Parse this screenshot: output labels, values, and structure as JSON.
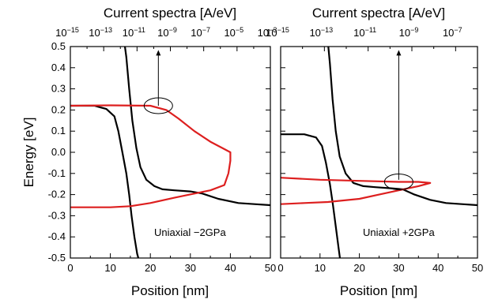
{
  "chart_data": [
    {
      "type": "line",
      "top_axis_title": "Current spectra [A/eV]",
      "top_ticks": [
        {
          "label": "10",
          "exp": "−15"
        },
        {
          "label": "10",
          "exp": "−13"
        },
        {
          "label": "10",
          "exp": "−11"
        },
        {
          "label": "10",
          "exp": "−9"
        },
        {
          "label": "10",
          "exp": "−7"
        },
        {
          "label": "10",
          "exp": "−5"
        },
        {
          "label": "10",
          "exp": "−3"
        }
      ],
      "top_xlim": [
        -15,
        -3
      ],
      "xlabel": "Position [nm]",
      "ylabel": "Energy [eV]",
      "xlim": [
        0,
        50
      ],
      "ylim": [
        -0.5,
        0.5
      ],
      "xticks": [
        "0",
        "10",
        "20",
        "30",
        "40",
        "50"
      ],
      "yticks": [
        "0.5",
        "0.4",
        "0.3",
        "0.2",
        "0.1",
        "0.0",
        "-0.1",
        "-0.2",
        "-0.3",
        "-0.4",
        "-0.5"
      ],
      "annotation": "Uniaxial −2GPa",
      "arrow": {
        "x": 22,
        "y_from": 0.22,
        "y_to": 0.48
      },
      "marker_ellipse": {
        "x": 22,
        "y": 0.22
      },
      "series": [
        {
          "color": "#000000",
          "points": [
            [
              13.5,
              0.52
            ],
            [
              14,
              0.45
            ],
            [
              14.7,
              0.3
            ],
            [
              15.5,
              0.15
            ],
            [
              16.5,
              0.02
            ],
            [
              17.5,
              -0.07
            ],
            [
              19,
              -0.13
            ],
            [
              21,
              -0.16
            ],
            [
              23,
              -0.175
            ],
            [
              26,
              -0.18
            ],
            [
              30,
              -0.185
            ],
            [
              33,
              -0.195
            ],
            [
              37,
              -0.22
            ],
            [
              42,
              -0.24
            ],
            [
              46,
              -0.245
            ],
            [
              50,
              -0.25
            ]
          ]
        },
        {
          "color": "#000000",
          "points": [
            [
              0,
              0.22
            ],
            [
              6,
              0.22
            ],
            [
              9,
              0.205
            ],
            [
              11,
              0.17
            ],
            [
              12,
              0.1
            ],
            [
              13,
              0.0
            ],
            [
              14,
              -0.1
            ],
            [
              14.7,
              -0.2
            ],
            [
              15.3,
              -0.3
            ],
            [
              16,
              -0.4
            ],
            [
              16.7,
              -0.48
            ],
            [
              17.3,
              -0.52
            ]
          ]
        },
        {
          "color": "#dd1f1f",
          "points": [
            [
              0,
              0.22
            ],
            [
              10,
              0.222
            ],
            [
              20,
              0.22
            ],
            [
              24,
              0.2
            ],
            [
              27,
              0.16
            ],
            [
              31,
              0.1
            ],
            [
              35,
              0.05
            ],
            [
              38,
              0.02
            ],
            [
              40,
              0.0
            ],
            [
              40,
              -0.04
            ],
            [
              39.5,
              -0.1
            ],
            [
              38.5,
              -0.155
            ],
            [
              35,
              -0.18
            ],
            [
              31,
              -0.195
            ],
            [
              26,
              -0.215
            ],
            [
              20,
              -0.24
            ],
            [
              15,
              -0.255
            ],
            [
              10,
              -0.26
            ],
            [
              0,
              -0.26
            ]
          ]
        }
      ]
    },
    {
      "type": "line",
      "top_axis_title": "Current spectra [A/eV]",
      "top_ticks": [
        {
          "label": "10",
          "exp": "−15"
        },
        {
          "label": "10",
          "exp": "−13"
        },
        {
          "label": "10",
          "exp": "−11"
        },
        {
          "label": "10",
          "exp": "−9"
        },
        {
          "label": "10",
          "exp": "−7"
        }
      ],
      "top_xlim": [
        -15,
        -6
      ],
      "xlabel": "Position [nm]",
      "xlim": [
        0,
        50
      ],
      "ylim": [
        -0.5,
        0.5
      ],
      "xticks": [
        "0",
        "10",
        "20",
        "30",
        "40",
        "50"
      ],
      "annotation": "Uniaxial +2GPa",
      "arrow": {
        "x": 30,
        "y_from": -0.13,
        "y_to": 0.48
      },
      "marker_ellipse": {
        "x": 30,
        "y": -0.14
      },
      "series": [
        {
          "color": "#000000",
          "points": [
            [
              12,
              0.52
            ],
            [
              12.5,
              0.42
            ],
            [
              13.2,
              0.25
            ],
            [
              14,
              0.1
            ],
            [
              15,
              -0.02
            ],
            [
              16.5,
              -0.1
            ],
            [
              18.5,
              -0.145
            ],
            [
              21,
              -0.16
            ],
            [
              24,
              -0.165
            ],
            [
              28,
              -0.17
            ],
            [
              31,
              -0.175
            ],
            [
              34,
              -0.2
            ],
            [
              38,
              -0.225
            ],
            [
              42,
              -0.24
            ],
            [
              46,
              -0.245
            ],
            [
              50,
              -0.25
            ]
          ]
        },
        {
          "color": "#000000",
          "points": [
            [
              0,
              0.085
            ],
            [
              6,
              0.085
            ],
            [
              9,
              0.07
            ],
            [
              10.5,
              0.03
            ],
            [
              11.5,
              -0.05
            ],
            [
              12.5,
              -0.15
            ],
            [
              13.3,
              -0.25
            ],
            [
              14,
              -0.35
            ],
            [
              14.7,
              -0.45
            ],
            [
              15.2,
              -0.52
            ]
          ]
        },
        {
          "color": "#dd1f1f",
          "points": [
            [
              0,
              -0.12
            ],
            [
              10,
              -0.13
            ],
            [
              20,
              -0.135
            ],
            [
              30,
              -0.14
            ],
            [
              35,
              -0.14
            ],
            [
              38,
              -0.145
            ],
            [
              35,
              -0.16
            ],
            [
              30,
              -0.18
            ],
            [
              25,
              -0.2
            ],
            [
              20,
              -0.22
            ],
            [
              12,
              -0.235
            ],
            [
              6,
              -0.24
            ],
            [
              0,
              -0.245
            ]
          ]
        }
      ]
    }
  ]
}
